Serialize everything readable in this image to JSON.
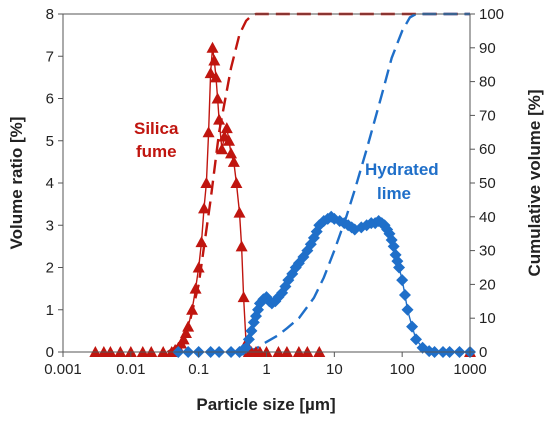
{
  "chart_data": {
    "type": "scatter",
    "xlabel": "Particle size [µm]",
    "ylabel_left": "Volume ratio [%]",
    "ylabel_right": "Cumulative volume [%]",
    "x_scale": "log",
    "xlim": [
      0.001,
      1000
    ],
    "ylim_left": [
      0,
      8
    ],
    "ylim_right": [
      0,
      100
    ],
    "x_ticks": [
      0.001,
      0.01,
      0.1,
      1,
      10,
      100,
      1000
    ],
    "x_tick_labels": [
      "0.001",
      "0.01",
      "0.1",
      "1",
      "10",
      "100",
      "1000"
    ],
    "y_left_ticks": [
      "0",
      "1",
      "2",
      "3",
      "4",
      "5",
      "6",
      "7",
      "8"
    ],
    "y_right_ticks": [
      "0",
      "10",
      "20",
      "30",
      "40",
      "50",
      "60",
      "70",
      "80",
      "90",
      "100"
    ],
    "grid": false,
    "legend": "none",
    "annotations": [
      {
        "lines": [
          "Silica",
          "fume"
        ],
        "color": "#c0150f"
      },
      {
        "lines": [
          "Hydrated",
          "lime"
        ],
        "color": "#1f6fc9"
      }
    ],
    "series": [
      {
        "kind": "markers",
        "axis": "left",
        "marker": "triangle",
        "color": "#c0150f",
        "x": [
          0.003,
          0.004,
          0.005,
          0.007,
          0.01,
          0.015,
          0.02,
          0.03,
          0.04,
          0.045,
          0.05,
          0.055,
          0.06,
          0.065,
          0.07,
          0.08,
          0.09,
          0.1,
          0.11,
          0.12,
          0.13,
          0.14,
          0.15,
          0.16,
          0.17,
          0.18,
          0.19,
          0.2,
          0.22,
          0.24,
          0.26,
          0.28,
          0.3,
          0.33,
          0.36,
          0.4,
          0.43,
          0.46,
          0.5,
          0.55,
          0.6,
          0.7,
          0.8,
          1,
          1.5,
          2,
          3,
          4,
          6,
          1000
        ],
        "y": [
          0,
          0,
          0,
          0,
          0,
          0,
          0,
          0,
          0,
          0.05,
          0.1,
          0.2,
          0.3,
          0.45,
          0.6,
          1.0,
          1.5,
          2.0,
          2.6,
          3.4,
          4.0,
          5.2,
          6.6,
          7.2,
          6.9,
          6.5,
          6.0,
          5.5,
          4.8,
          5.1,
          5.3,
          5.0,
          4.7,
          4.5,
          4.0,
          3.3,
          2.5,
          1.3,
          0.2,
          0,
          0,
          0,
          0,
          0,
          0,
          0,
          0,
          0,
          0,
          0
        ]
      },
      {
        "kind": "markers",
        "axis": "left",
        "marker": "diamond",
        "color": "#1f6fc9",
        "x": [
          0.05,
          0.07,
          0.1,
          0.15,
          0.2,
          0.3,
          0.4,
          0.45,
          0.5,
          0.55,
          0.6,
          0.65,
          0.7,
          0.75,
          0.8,
          0.9,
          1.0,
          1.1,
          1.2,
          1.35,
          1.5,
          1.7,
          1.9,
          2.1,
          2.4,
          2.7,
          3.0,
          3.5,
          4.0,
          4.5,
          5.0,
          5.5,
          6.0,
          7.0,
          8.0,
          9.0,
          10,
          12,
          14,
          16,
          18,
          20,
          25,
          30,
          35,
          40,
          45,
          50,
          55,
          60,
          65,
          70,
          75,
          80,
          85,
          90,
          100,
          110,
          120,
          140,
          160,
          200,
          250,
          300,
          400,
          500,
          700,
          1000
        ],
        "y": [
          0,
          0,
          0,
          0,
          0,
          0,
          0,
          0.05,
          0.1,
          0.3,
          0.5,
          0.7,
          0.85,
          1.0,
          1.15,
          1.25,
          1.3,
          1.2,
          1.15,
          1.2,
          1.3,
          1.4,
          1.55,
          1.7,
          1.85,
          2.0,
          2.1,
          2.25,
          2.4,
          2.55,
          2.7,
          2.85,
          3.0,
          3.1,
          3.15,
          3.2,
          3.15,
          3.1,
          3.05,
          3.0,
          2.95,
          2.9,
          2.95,
          3.0,
          3.05,
          3.05,
          3.1,
          3.05,
          3.0,
          2.9,
          2.8,
          2.65,
          2.5,
          2.3,
          2.15,
          2.0,
          1.7,
          1.35,
          1.0,
          0.6,
          0.3,
          0.1,
          0.02,
          0,
          0,
          0,
          0,
          0
        ]
      },
      {
        "kind": "line",
        "axis": "left",
        "color": "#c0150f",
        "x": [
          0.045,
          0.05,
          0.055,
          0.06,
          0.065,
          0.07,
          0.08,
          0.09,
          0.1,
          0.11,
          0.12,
          0.13,
          0.14,
          0.15,
          0.16,
          0.17,
          0.18,
          0.19,
          0.2,
          0.22,
          0.24,
          0.26,
          0.28,
          0.3,
          0.33,
          0.36,
          0.4,
          0.43,
          0.46,
          0.5
        ],
        "y": [
          0.05,
          0.1,
          0.2,
          0.3,
          0.45,
          0.6,
          1.0,
          1.5,
          2.0,
          2.6,
          3.4,
          4.0,
          5.2,
          6.6,
          7.2,
          6.9,
          6.5,
          6.0,
          5.5,
          4.8,
          5.1,
          5.3,
          5.0,
          4.7,
          4.5,
          4.0,
          3.3,
          2.5,
          1.3,
          0.2
        ]
      },
      {
        "kind": "line",
        "axis": "left",
        "color": "#1f6fc9",
        "x": [
          0.45,
          0.5,
          0.55,
          0.6,
          0.65,
          0.7,
          0.75,
          0.8,
          0.9,
          1.0,
          1.1,
          1.2,
          1.35,
          1.5,
          1.7,
          1.9,
          2.1,
          2.4,
          2.7,
          3.0,
          3.5,
          4.0,
          4.5,
          5.0,
          5.5,
          6.0,
          7.0,
          8.0,
          9.0,
          10,
          12,
          14,
          16,
          18,
          20,
          25,
          30,
          35,
          40,
          45,
          50,
          55,
          60,
          65,
          70,
          75,
          80,
          85,
          90,
          100,
          110,
          120,
          140,
          160,
          200,
          250
        ],
        "y": [
          0.05,
          0.1,
          0.3,
          0.5,
          0.7,
          0.85,
          1.0,
          1.15,
          1.25,
          1.3,
          1.2,
          1.15,
          1.2,
          1.3,
          1.4,
          1.55,
          1.7,
          1.85,
          2.0,
          2.1,
          2.25,
          2.4,
          2.55,
          2.7,
          2.85,
          3.0,
          3.1,
          3.15,
          3.2,
          3.15,
          3.1,
          3.05,
          3.0,
          2.95,
          2.9,
          2.95,
          3.0,
          3.05,
          3.05,
          3.1,
          3.05,
          3.0,
          2.9,
          2.8,
          2.65,
          2.5,
          2.3,
          2.15,
          2.0,
          1.7,
          1.35,
          1.0,
          0.6,
          0.3,
          0.1,
          0.02
        ]
      },
      {
        "kind": "dashed-line",
        "axis": "right",
        "color": "#c0150f",
        "x": [
          0.035,
          0.05,
          0.07,
          0.1,
          0.15,
          0.2,
          0.3,
          0.4,
          0.5,
          0.6,
          0.7,
          1000
        ],
        "y": [
          0,
          2,
          7,
          20,
          45,
          65,
          84,
          94,
          98,
          99.5,
          100,
          100
        ]
      },
      {
        "kind": "dashed-line",
        "axis": "right",
        "color": "#1f6fc9",
        "x": [
          0.5,
          0.7,
          1,
          1.5,
          2,
          3,
          5,
          7,
          10,
          15,
          20,
          30,
          50,
          70,
          100,
          130,
          160,
          1000
        ],
        "y": [
          0,
          1,
          3,
          5,
          7,
          10,
          16,
          22,
          30,
          40,
          48,
          60,
          76,
          87,
          95,
          99,
          100,
          100
        ]
      }
    ]
  }
}
